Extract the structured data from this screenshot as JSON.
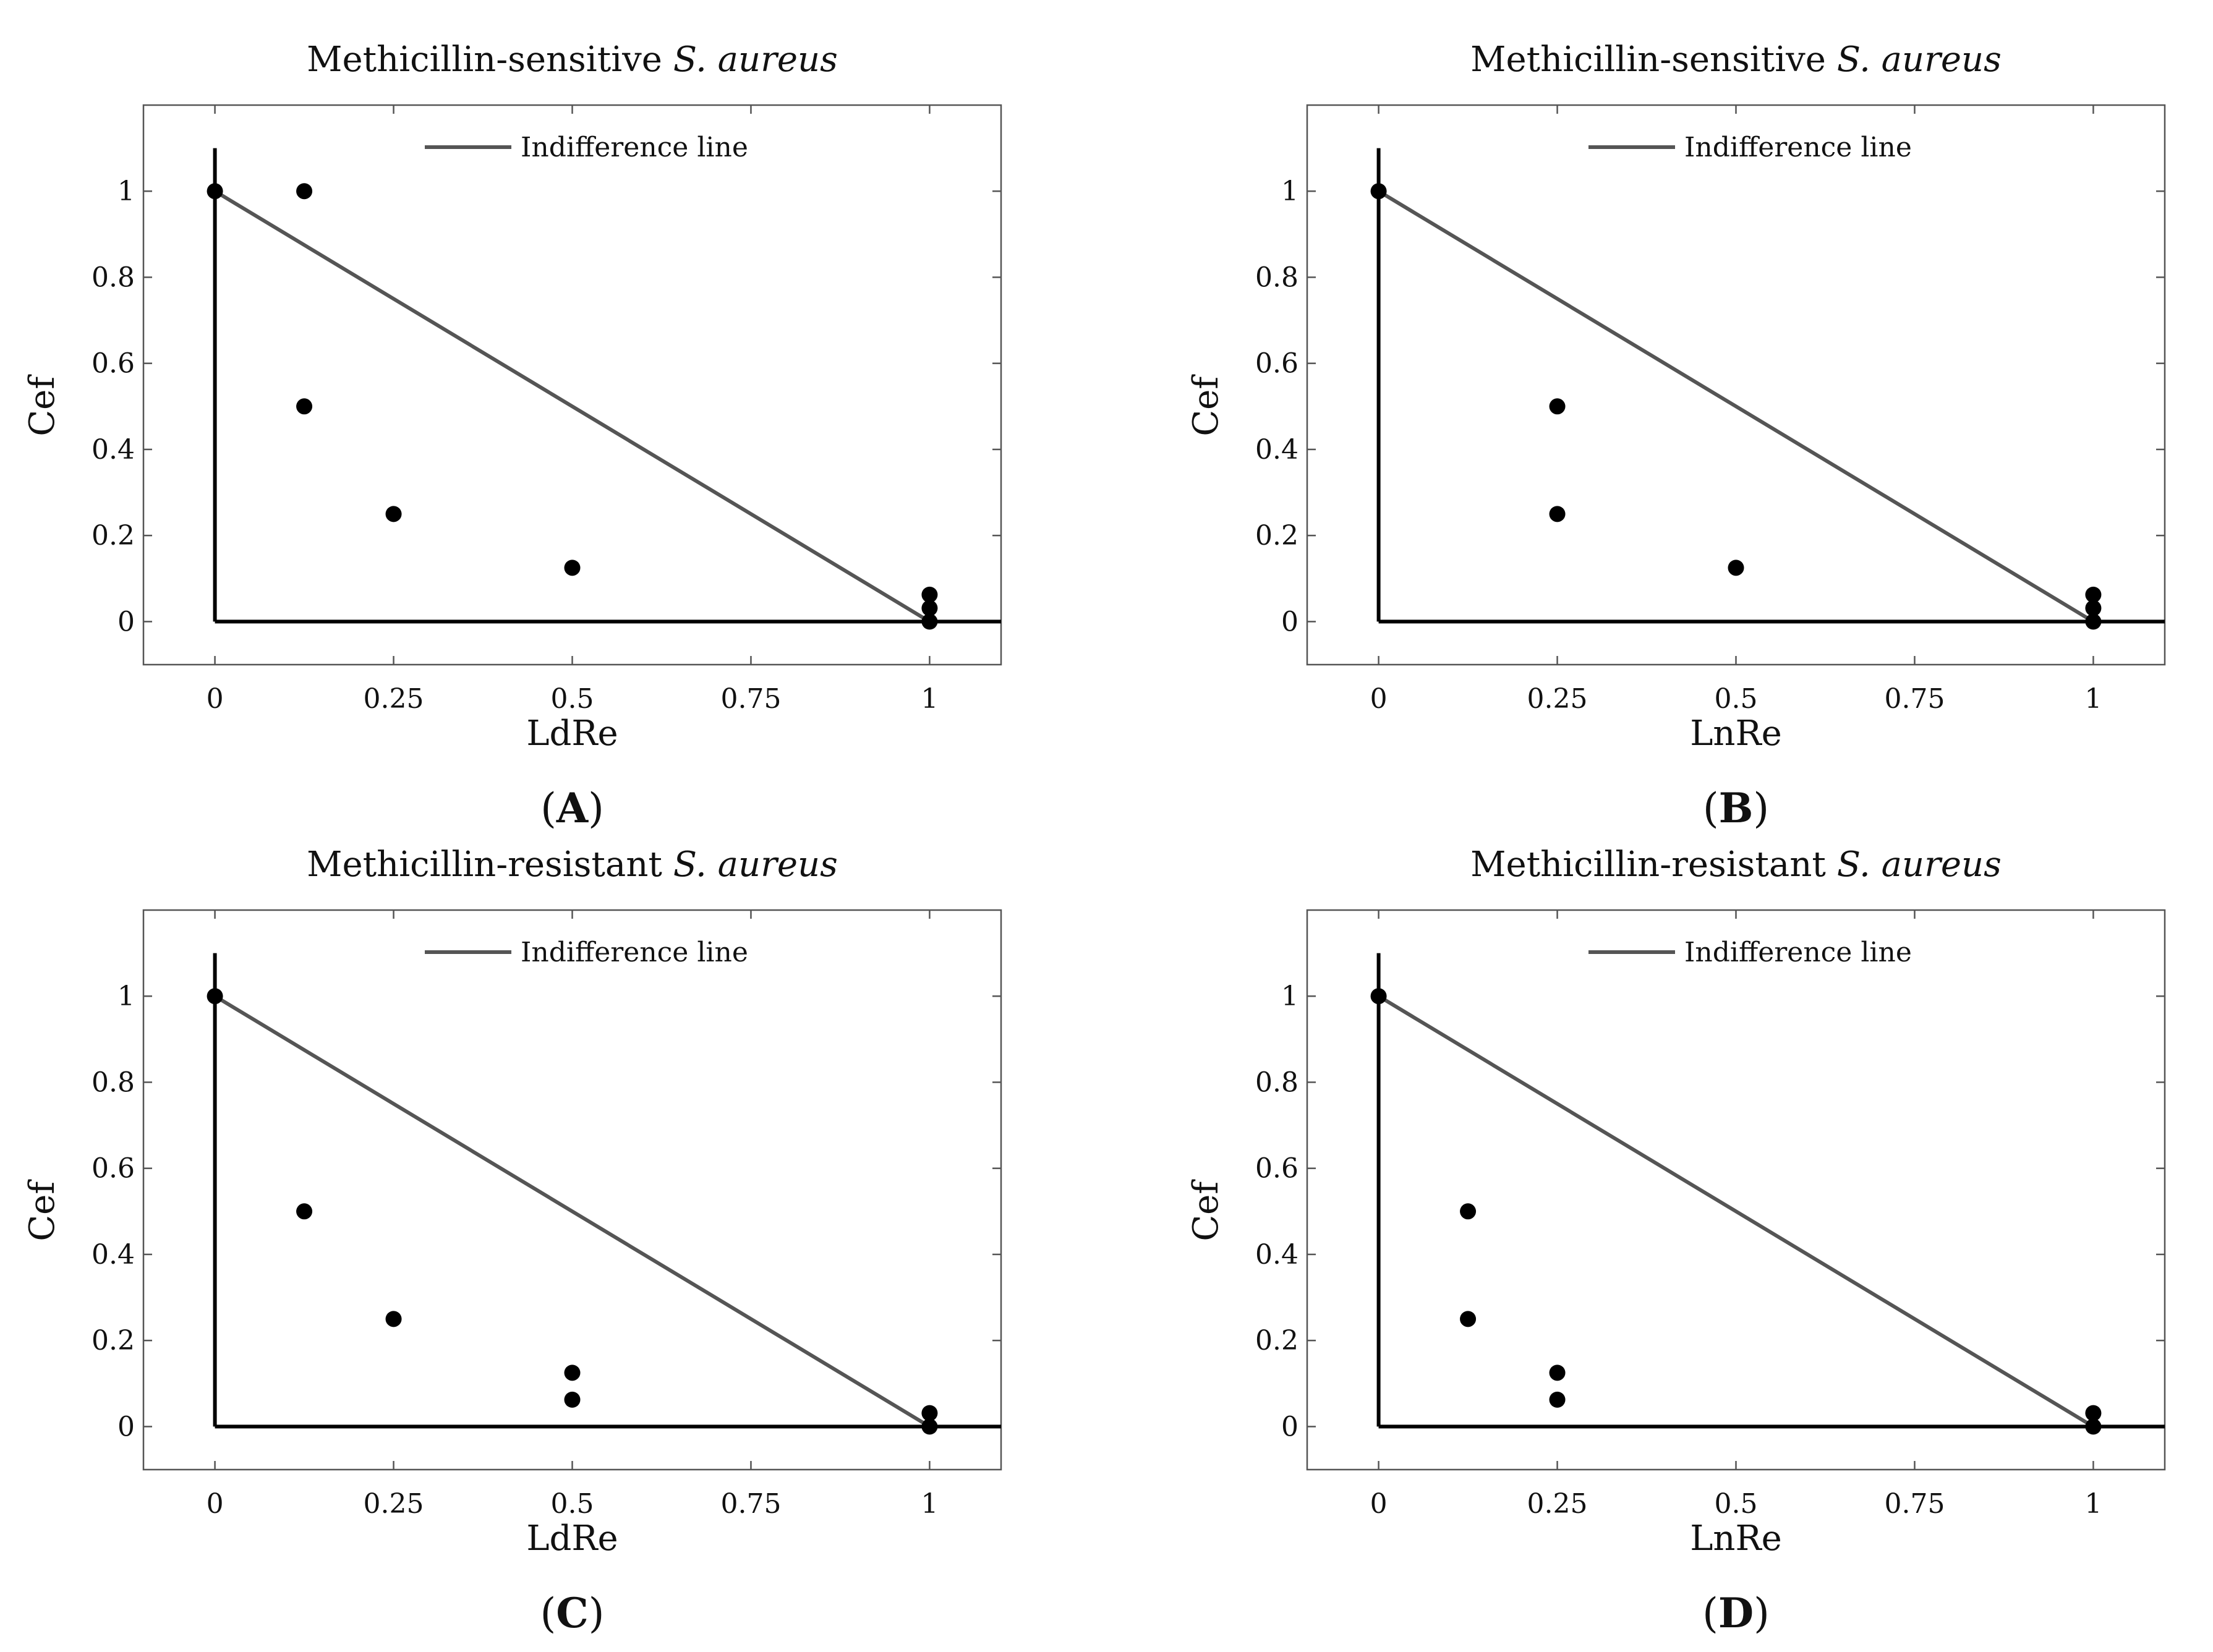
{
  "chart_data": [
    {
      "type": "scatter",
      "panel": "A",
      "caption": {
        "open": "(",
        "letter": "A",
        "close": ")"
      },
      "title": {
        "main": "Methicillin-sensitive ",
        "italic": "S. aureus"
      },
      "xlabel": "LdRe",
      "ylabel": "Cef",
      "xlim": [
        -0.1,
        1.1
      ],
      "ylim": [
        -0.1,
        1.2
      ],
      "x_ticks": [
        0,
        0.25,
        0.5,
        0.75,
        1
      ],
      "x_tick_labels": [
        "0",
        "0.25",
        "0.5",
        "0.75",
        "1"
      ],
      "y_ticks": [
        0,
        0.2,
        0.4,
        0.6,
        0.8,
        1
      ],
      "y_tick_labels": [
        "0",
        "0.2",
        "0.4",
        "0.6",
        "0.8",
        "1"
      ],
      "legend": {
        "label": "Indifference line",
        "position": "top-center"
      },
      "indifference_line": {
        "x": [
          0,
          1
        ],
        "y": [
          1,
          0
        ]
      },
      "points": [
        {
          "x": 0,
          "y": 1
        },
        {
          "x": 0.125,
          "y": 1
        },
        {
          "x": 0.125,
          "y": 0.5
        },
        {
          "x": 0.25,
          "y": 0.25
        },
        {
          "x": 0.5,
          "y": 0.125
        },
        {
          "x": 1,
          "y": 0.0625
        },
        {
          "x": 1,
          "y": 0.03125
        },
        {
          "x": 1,
          "y": 0
        }
      ]
    },
    {
      "type": "scatter",
      "panel": "B",
      "caption": {
        "open": "(",
        "letter": "B",
        "close": ")"
      },
      "title": {
        "main": "Methicillin-sensitive ",
        "italic": "S. aureus"
      },
      "xlabel": "LnRe",
      "ylabel": "Cef",
      "xlim": [
        -0.1,
        1.1
      ],
      "ylim": [
        -0.1,
        1.2
      ],
      "x_ticks": [
        0,
        0.25,
        0.5,
        0.75,
        1
      ],
      "x_tick_labels": [
        "0",
        "0.25",
        "0.5",
        "0.75",
        "1"
      ],
      "y_ticks": [
        0,
        0.2,
        0.4,
        0.6,
        0.8,
        1
      ],
      "y_tick_labels": [
        "0",
        "0.2",
        "0.4",
        "0.6",
        "0.8",
        "1"
      ],
      "legend": {
        "label": "Indifference line",
        "position": "top-center"
      },
      "indifference_line": {
        "x": [
          0,
          1
        ],
        "y": [
          1,
          0
        ]
      },
      "points": [
        {
          "x": 0,
          "y": 1
        },
        {
          "x": 0.25,
          "y": 0.5
        },
        {
          "x": 0.25,
          "y": 0.25
        },
        {
          "x": 0.5,
          "y": 0.125
        },
        {
          "x": 1,
          "y": 0.0625
        },
        {
          "x": 1,
          "y": 0.03125
        },
        {
          "x": 1,
          "y": 0
        }
      ]
    },
    {
      "type": "scatter",
      "panel": "C",
      "caption": {
        "open": "(",
        "letter": "C",
        "close": ")"
      },
      "title": {
        "main": "Methicillin-resistant  ",
        "italic": "S. aureus"
      },
      "xlabel": "LdRe",
      "ylabel": "Cef",
      "xlim": [
        -0.1,
        1.1
      ],
      "ylim": [
        -0.1,
        1.2
      ],
      "x_ticks": [
        0,
        0.25,
        0.5,
        0.75,
        1
      ],
      "x_tick_labels": [
        "0",
        "0.25",
        "0.5",
        "0.75",
        "1"
      ],
      "y_ticks": [
        0,
        0.2,
        0.4,
        0.6,
        0.8,
        1
      ],
      "y_tick_labels": [
        "0",
        "0.2",
        "0.4",
        "0.6",
        "0.8",
        "1"
      ],
      "legend": {
        "label": "Indifference line",
        "position": "top-center"
      },
      "indifference_line": {
        "x": [
          0,
          1
        ],
        "y": [
          1,
          0
        ]
      },
      "points": [
        {
          "x": 0,
          "y": 1
        },
        {
          "x": 0.125,
          "y": 0.5
        },
        {
          "x": 0.25,
          "y": 0.25
        },
        {
          "x": 0.5,
          "y": 0.125
        },
        {
          "x": 0.5,
          "y": 0.0625
        },
        {
          "x": 1,
          "y": 0.03125
        },
        {
          "x": 1,
          "y": 0
        }
      ]
    },
    {
      "type": "scatter",
      "panel": "D",
      "caption": {
        "open": "(",
        "letter": "D",
        "close": ")"
      },
      "title": {
        "main": "Methicillin-resistant  ",
        "italic": "S. aureus"
      },
      "xlabel": "LnRe",
      "ylabel": "Cef",
      "xlim": [
        -0.1,
        1.1
      ],
      "ylim": [
        -0.1,
        1.2
      ],
      "x_ticks": [
        0,
        0.25,
        0.5,
        0.75,
        1
      ],
      "x_tick_labels": [
        "0",
        "0.25",
        "0.5",
        "0.75",
        "1"
      ],
      "y_ticks": [
        0,
        0.2,
        0.4,
        0.6,
        0.8,
        1
      ],
      "y_tick_labels": [
        "0",
        "0.2",
        "0.4",
        "0.6",
        "0.8",
        "1"
      ],
      "legend": {
        "label": "Indifference line",
        "position": "top-center"
      },
      "indifference_line": {
        "x": [
          0,
          1
        ],
        "y": [
          1,
          0
        ]
      },
      "points": [
        {
          "x": 0,
          "y": 1
        },
        {
          "x": 0.125,
          "y": 0.5
        },
        {
          "x": 0.125,
          "y": 0.25
        },
        {
          "x": 0.25,
          "y": 0.125
        },
        {
          "x": 0.25,
          "y": 0.0625
        },
        {
          "x": 1,
          "y": 0.03125
        },
        {
          "x": 1,
          "y": 0
        }
      ]
    }
  ]
}
